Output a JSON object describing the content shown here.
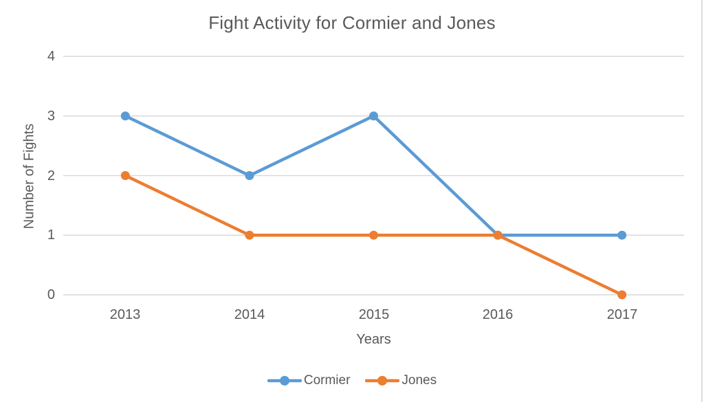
{
  "chart_data": {
    "type": "line",
    "title": "Fight Activity for Cormier and Jones",
    "xlabel": "Years",
    "ylabel": "Number of Fights",
    "categories": [
      "2013",
      "2014",
      "2015",
      "2016",
      "2017"
    ],
    "series": [
      {
        "name": "Cormier",
        "values": [
          3,
          2,
          3,
          1,
          1
        ],
        "color": "#5B9BD5"
      },
      {
        "name": "Jones",
        "values": [
          2,
          1,
          1,
          1,
          0
        ],
        "color": "#ED7D31"
      }
    ],
    "yticks": [
      0,
      1,
      2,
      3,
      4
    ],
    "ylim": [
      0,
      4
    ],
    "grid": true,
    "gridline_color": "#D9D9D9",
    "text_color": "#595959",
    "marker": "circle",
    "legend_position": "bottom"
  }
}
